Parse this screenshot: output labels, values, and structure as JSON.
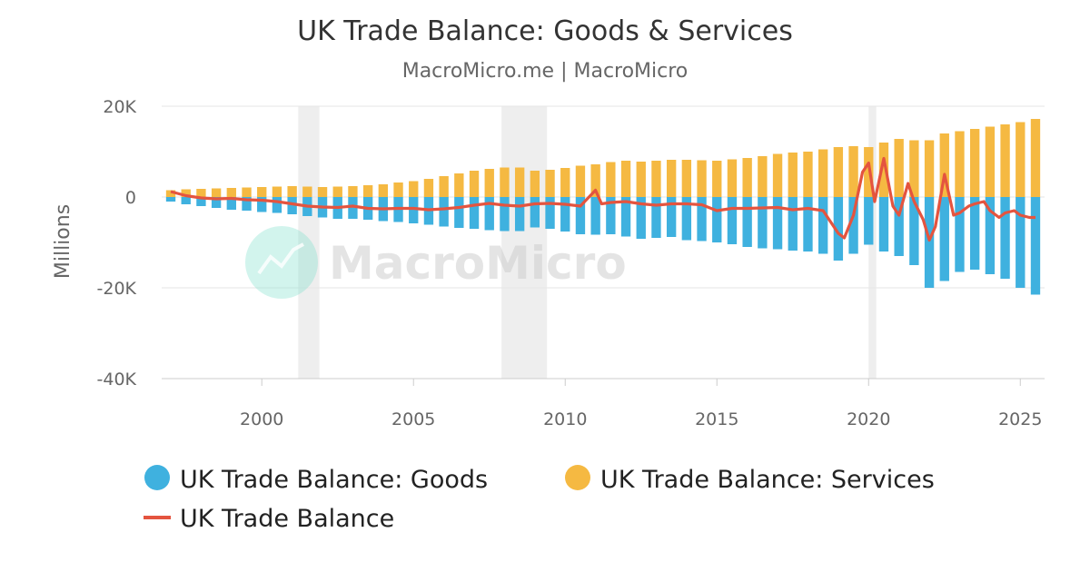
{
  "chart_data": {
    "type": "bar",
    "title": "UK Trade Balance: Goods & Services",
    "subtitle": "MacroMicro.me | MacroMicro",
    "ylabel": "Millions",
    "xlim": [
      1996.7,
      2025.8
    ],
    "ylim": [
      -40000,
      20000
    ],
    "y_ticks": [
      20000,
      0,
      -20000,
      -40000
    ],
    "y_tick_labels": [
      "20K",
      "0",
      "-20K",
      "-40K"
    ],
    "x_ticks": [
      2000,
      2005,
      2010,
      2015,
      2020,
      2025
    ],
    "x_tick_labels": [
      "2000",
      "2005",
      "2010",
      "2015",
      "2020",
      "2025"
    ],
    "grid": true,
    "legend": "bottom",
    "shaded_periods": [
      [
        2001.2,
        2001.9
      ],
      [
        2007.9,
        2009.4
      ],
      [
        2020.0,
        2020.25
      ]
    ],
    "watermark": "MacroMicro",
    "colors": {
      "goods": "#3fb1df",
      "services": "#f5b942",
      "balance": "#e4543f",
      "shade": "#eeeeee"
    },
    "series": [
      {
        "name": "UK Trade Balance: Goods",
        "kind": "bar",
        "x": [
          1997.0,
          1997.5,
          1998.0,
          1998.5,
          1999.0,
          1999.5,
          2000.0,
          2000.5,
          2001.0,
          2001.5,
          2002.0,
          2002.5,
          2003.0,
          2003.5,
          2004.0,
          2004.5,
          2005.0,
          2005.5,
          2006.0,
          2006.5,
          2007.0,
          2007.5,
          2008.0,
          2008.5,
          2009.0,
          2009.5,
          2010.0,
          2010.5,
          2011.0,
          2011.5,
          2012.0,
          2012.5,
          2013.0,
          2013.5,
          2014.0,
          2014.5,
          2015.0,
          2015.5,
          2016.0,
          2016.5,
          2017.0,
          2017.5,
          2018.0,
          2018.5,
          2019.0,
          2019.5,
          2020.0,
          2020.5,
          2021.0,
          2021.5,
          2022.0,
          2022.5,
          2023.0,
          2023.5,
          2024.0,
          2024.5,
          2025.0,
          2025.5
        ],
        "values": [
          -1000,
          -1600,
          -2000,
          -2400,
          -2800,
          -3000,
          -3300,
          -3500,
          -3800,
          -4200,
          -4500,
          -4800,
          -4800,
          -5000,
          -5300,
          -5500,
          -5800,
          -6100,
          -6500,
          -6800,
          -7000,
          -7300,
          -7500,
          -7500,
          -6700,
          -7000,
          -7600,
          -8200,
          -8300,
          -8200,
          -8700,
          -9200,
          -9000,
          -8800,
          -9500,
          -9700,
          -10000,
          -10400,
          -11000,
          -11300,
          -11500,
          -11800,
          -12000,
          -12500,
          -14000,
          -12500,
          -10500,
          -12000,
          -13000,
          -15000,
          -20000,
          -18500,
          -16500,
          -16000,
          -17000,
          -18000,
          -20000,
          -21500
        ]
      },
      {
        "name": "UK Trade Balance: Services",
        "kind": "bar",
        "x": [
          1997.0,
          1997.5,
          1998.0,
          1998.5,
          1999.0,
          1999.5,
          2000.0,
          2000.5,
          2001.0,
          2001.5,
          2002.0,
          2002.5,
          2003.0,
          2003.5,
          2004.0,
          2004.5,
          2005.0,
          2005.5,
          2006.0,
          2006.5,
          2007.0,
          2007.5,
          2008.0,
          2008.5,
          2009.0,
          2009.5,
          2010.0,
          2010.5,
          2011.0,
          2011.5,
          2012.0,
          2012.5,
          2013.0,
          2013.5,
          2014.0,
          2014.5,
          2015.0,
          2015.5,
          2016.0,
          2016.5,
          2017.0,
          2017.5,
          2018.0,
          2018.5,
          2019.0,
          2019.5,
          2020.0,
          2020.5,
          2021.0,
          2021.5,
          2022.0,
          2022.5,
          2023.0,
          2023.5,
          2024.0,
          2024.5,
          2025.0,
          2025.5
        ],
        "values": [
          1500,
          1700,
          1800,
          1900,
          2000,
          2100,
          2200,
          2300,
          2400,
          2300,
          2200,
          2300,
          2400,
          2600,
          2800,
          3200,
          3500,
          4000,
          4600,
          5200,
          5800,
          6200,
          6500,
          6500,
          5800,
          6000,
          6400,
          6900,
          7200,
          7700,
          8000,
          7800,
          8000,
          8200,
          8200,
          8100,
          8000,
          8300,
          8600,
          9000,
          9500,
          9800,
          10000,
          10500,
          11000,
          11200,
          11000,
          12000,
          12800,
          12500,
          12500,
          14000,
          14500,
          15000,
          15500,
          16000,
          16500,
          17200
        ]
      },
      {
        "name": "UK Trade Balance",
        "kind": "line",
        "x": [
          1997.0,
          1997.5,
          1998.0,
          1998.5,
          1999.0,
          1999.5,
          2000.0,
          2000.5,
          2001.0,
          2001.5,
          2002.0,
          2002.5,
          2003.0,
          2003.5,
          2004.0,
          2004.5,
          2005.0,
          2005.5,
          2006.0,
          2006.5,
          2007.0,
          2007.5,
          2008.0,
          2008.5,
          2009.0,
          2009.5,
          2010.0,
          2010.5,
          2011.0,
          2011.2,
          2011.5,
          2012.0,
          2012.5,
          2013.0,
          2013.5,
          2014.0,
          2014.5,
          2015.0,
          2015.5,
          2016.0,
          2016.5,
          2017.0,
          2017.5,
          2018.0,
          2018.5,
          2019.0,
          2019.2,
          2019.5,
          2019.8,
          2020.0,
          2020.2,
          2020.5,
          2020.8,
          2021.0,
          2021.3,
          2021.5,
          2021.8,
          2022.0,
          2022.2,
          2022.5,
          2022.8,
          2023.0,
          2023.3,
          2023.5,
          2023.8,
          2024.0,
          2024.3,
          2024.5,
          2024.8,
          2025.0,
          2025.3,
          2025.5
        ],
        "values": [
          1200,
          300,
          -200,
          -400,
          -300,
          -600,
          -700,
          -1000,
          -1500,
          -2000,
          -2200,
          -2300,
          -2000,
          -2500,
          -2600,
          -2500,
          -2500,
          -2800,
          -2600,
          -2300,
          -1800,
          -1400,
          -1800,
          -2000,
          -1500,
          -1400,
          -1600,
          -2000,
          1500,
          -1500,
          -1200,
          -1000,
          -1500,
          -1800,
          -1500,
          -1500,
          -1700,
          -3000,
          -2500,
          -2500,
          -2400,
          -2300,
          -2800,
          -2500,
          -3000,
          -8000,
          -9000,
          -4000,
          5500,
          7500,
          -1000,
          8500,
          -2000,
          -4000,
          3000,
          -1000,
          -5000,
          -9500,
          -6500,
          5000,
          -4000,
          -3500,
          -2000,
          -1500,
          -1000,
          -3000,
          -4500,
          -3500,
          -3000,
          -4000,
          -4500,
          -4500
        ]
      }
    ],
    "legend_entries": [
      "UK Trade Balance: Goods",
      "UK Trade Balance: Services",
      "UK Trade Balance"
    ]
  }
}
